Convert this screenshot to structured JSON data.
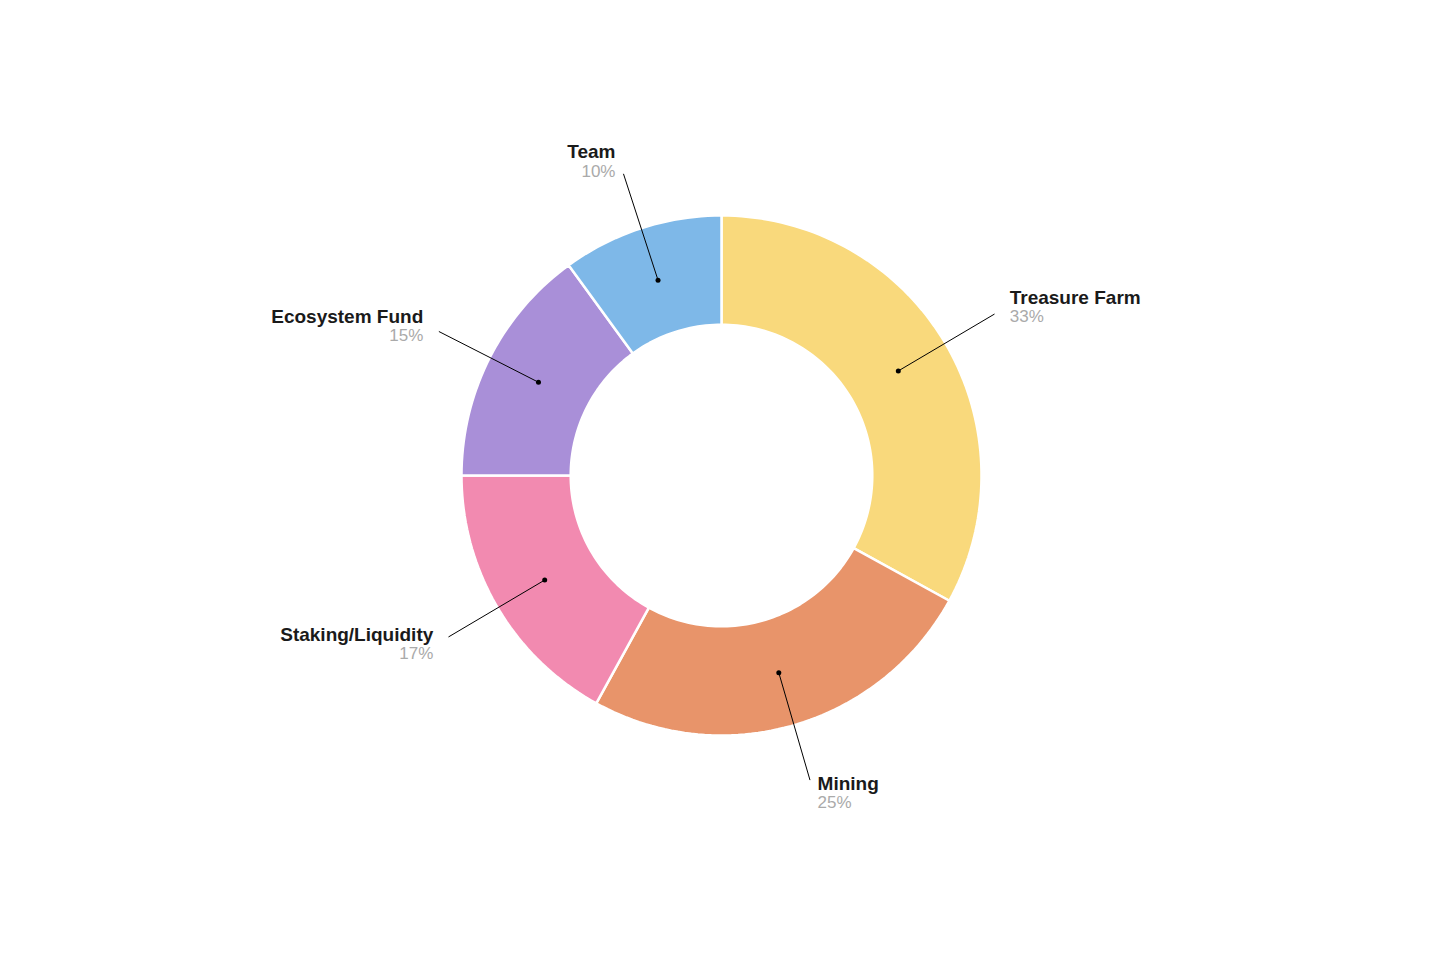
{
  "chart_data": {
    "type": "pie",
    "categories": [
      "Treasure Farm",
      "Mining",
      "Staking/Liquidity",
      "Ecosystem Fund",
      "Team"
    ],
    "values": [
      33,
      25,
      17,
      15,
      10
    ],
    "value_labels": [
      "33%",
      "25%",
      "17%",
      "15%",
      "10%"
    ],
    "colors": [
      "#F9D97C",
      "#E8946A",
      "#F28AB0",
      "#A98FD8",
      "#7EB8E8"
    ],
    "data_labels": true
  }
}
